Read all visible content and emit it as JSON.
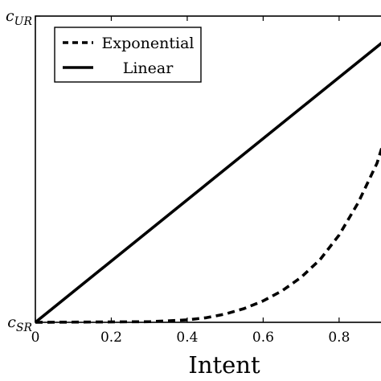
{
  "chart_data": {
    "type": "line",
    "title": "",
    "xlabel": "Intent",
    "ylabel": "",
    "xlim": [
      0,
      0.94
    ],
    "ylim": [
      0,
      1
    ],
    "xticks": [
      0,
      0.2,
      0.4,
      0.6,
      0.8
    ],
    "xtick_labels": [
      "0",
      "0.2",
      "0.4",
      "0.6",
      "0.8"
    ],
    "yticks": [
      {
        "value": 0,
        "label": "c_SR",
        "base": "c",
        "sub": "SR"
      },
      {
        "value": 1,
        "label": "c_UR",
        "base": "c",
        "sub": "UR"
      }
    ],
    "legend_position": "top-left",
    "series": [
      {
        "name": "Exponential",
        "style": "dashed",
        "color": "#000000",
        "x": [
          0,
          0.3,
          0.4,
          0.45,
          0.5,
          0.55,
          0.6,
          0.65,
          0.7,
          0.75,
          0.8,
          0.85,
          0.9,
          0.94
        ],
        "y": [
          0,
          0.002,
          0.008,
          0.015,
          0.027,
          0.045,
          0.07,
          0.103,
          0.147,
          0.205,
          0.285,
          0.39,
          0.52,
          0.68
        ]
      },
      {
        "name": "Linear",
        "style": "solid",
        "color": "#000000",
        "x": [
          0,
          0.94
        ],
        "y": [
          0,
          0.94
        ]
      }
    ]
  }
}
